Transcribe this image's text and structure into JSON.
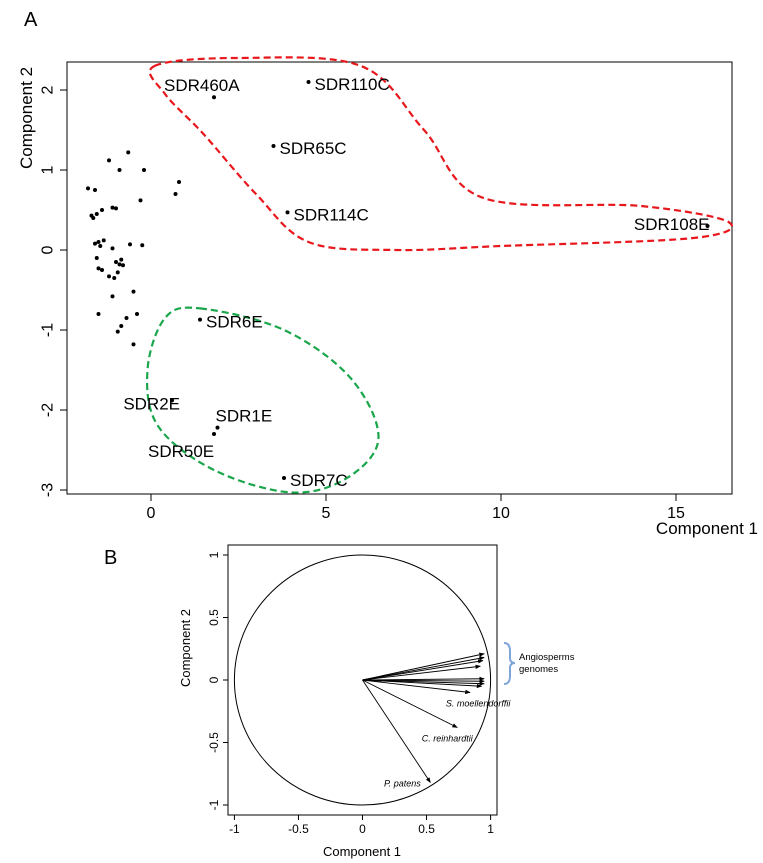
{
  "panel_a_letter": "A",
  "panel_b_letter": "B",
  "chart_data": [
    {
      "type": "scatter",
      "panel": "A",
      "xlabel": "Component 1",
      "ylabel": "Component 2",
      "xlim": [
        -2.4,
        16.6
      ],
      "ylim": [
        -3.05,
        2.35
      ],
      "xticks": [
        0,
        5,
        10,
        15
      ],
      "yticks": [
        -3,
        -2,
        -1,
        0,
        1,
        2
      ],
      "grid": false,
      "labeled_points": [
        {
          "label": "SDR460A",
          "x": 1.8,
          "y": 1.91
        },
        {
          "label": "SDR110C",
          "x": 4.5,
          "y": 2.1
        },
        {
          "label": "SDR65C",
          "x": 3.5,
          "y": 1.3
        },
        {
          "label": "SDR114C",
          "x": 3.9,
          "y": 0.47
        },
        {
          "label": "SDR108E",
          "x": 15.9,
          "y": 0.3
        },
        {
          "label": "SDR6E",
          "x": 1.4,
          "y": -0.87
        },
        {
          "label": "SDR2E",
          "x": 0.6,
          "y": -1.88
        },
        {
          "label": "SDR1E",
          "x": 1.9,
          "y": -2.22
        },
        {
          "label": "SDR50E",
          "x": 1.8,
          "y": -2.3
        },
        {
          "label": "SDR7C",
          "x": 3.8,
          "y": -2.85
        }
      ],
      "points": [
        {
          "x": -1.8,
          "y": 0.77
        },
        {
          "x": -1.6,
          "y": 0.75
        },
        {
          "x": -1.7,
          "y": 0.43
        },
        {
          "x": -1.65,
          "y": 0.4
        },
        {
          "x": -1.55,
          "y": 0.45
        },
        {
          "x": -1.4,
          "y": 0.5
        },
        {
          "x": -1.2,
          "y": 1.12
        },
        {
          "x": -1.1,
          "y": 0.53
        },
        {
          "x": -1.0,
          "y": 0.52
        },
        {
          "x": -0.65,
          "y": 1.22
        },
        {
          "x": -0.9,
          "y": 1.0
        },
        {
          "x": -0.2,
          "y": 1.0
        },
        {
          "x": -0.3,
          "y": 0.62
        },
        {
          "x": 0.8,
          "y": 0.85
        },
        {
          "x": 0.7,
          "y": 0.7
        },
        {
          "x": -1.6,
          "y": 0.08
        },
        {
          "x": -1.5,
          "y": 0.1
        },
        {
          "x": -1.45,
          "y": 0.05
        },
        {
          "x": -1.35,
          "y": 0.12
        },
        {
          "x": -1.1,
          "y": 0.02
        },
        {
          "x": -0.6,
          "y": 0.07
        },
        {
          "x": -0.25,
          "y": 0.06
        },
        {
          "x": -1.55,
          "y": -0.1
        },
        {
          "x": -1.4,
          "y": -0.25
        },
        {
          "x": -1.5,
          "y": -0.23
        },
        {
          "x": -1.0,
          "y": -0.15
        },
        {
          "x": -0.9,
          "y": -0.18
        },
        {
          "x": -0.85,
          "y": -0.12
        },
        {
          "x": -1.2,
          "y": -0.33
        },
        {
          "x": -1.05,
          "y": -0.35
        },
        {
          "x": -0.95,
          "y": -0.28
        },
        {
          "x": -0.8,
          "y": -0.19
        },
        {
          "x": -1.1,
          "y": -0.58
        },
        {
          "x": -0.5,
          "y": -0.52
        },
        {
          "x": -0.4,
          "y": -0.8
        },
        {
          "x": -0.7,
          "y": -0.85
        },
        {
          "x": -0.95,
          "y": -1.02
        },
        {
          "x": -0.5,
          "y": -1.18
        },
        {
          "x": -1.5,
          "y": -0.8
        },
        {
          "x": -0.85,
          "y": -0.95
        }
      ],
      "groups": [
        {
          "color": "#e8171c",
          "style": "dashed",
          "members": [
            "SDR460A",
            "SDR110C",
            "SDR65C",
            "SDR114C",
            "SDR108E"
          ]
        },
        {
          "color": "#1aa64a",
          "style": "dashed",
          "members": [
            "SDR6E",
            "SDR1E",
            "SDR50E",
            "SDR7C"
          ]
        }
      ]
    },
    {
      "type": "correlation-circle",
      "panel": "B",
      "xlabel": "Component 1",
      "ylabel": "Component 2",
      "xlim": [
        -1.05,
        1.05
      ],
      "ylim": [
        -1.08,
        1.08
      ],
      "xticks": [
        "-1",
        "-0.5",
        "0",
        "0.5",
        "1"
      ],
      "yticks": [
        "-1",
        "-0.5",
        "0",
        "0.5",
        "1"
      ],
      "circle_radius": 1,
      "vectors": [
        {
          "label": "",
          "x": 0.95,
          "y": 0.21
        },
        {
          "label": "",
          "x": 0.95,
          "y": 0.18
        },
        {
          "label": "",
          "x": 0.94,
          "y": 0.155
        },
        {
          "label": "",
          "x": 0.92,
          "y": 0.11
        },
        {
          "label": "",
          "x": 0.95,
          "y": 0.01
        },
        {
          "label": "",
          "x": 0.95,
          "y": -0.01
        },
        {
          "label": "",
          "x": 0.95,
          "y": -0.03
        },
        {
          "label": "",
          "x": 0.93,
          "y": -0.05
        },
        {
          "label": "S. moellendorffii",
          "x": 0.84,
          "y": -0.1
        },
        {
          "label": "C. reinhardtii",
          "x": 0.74,
          "y": -0.38
        },
        {
          "label": "P. patens",
          "x": 0.53,
          "y": -0.82
        }
      ],
      "bracket_label": [
        "Angiosperms",
        "genomes"
      ],
      "bracket_color": "#7fa6d9"
    }
  ]
}
